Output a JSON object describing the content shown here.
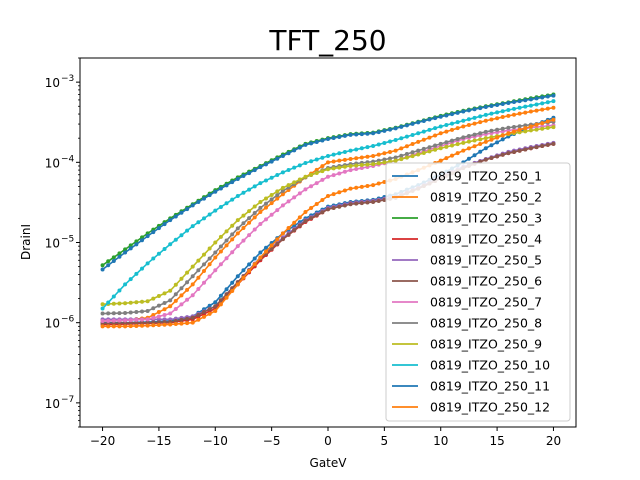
{
  "chart_data": {
    "type": "line",
    "title": "TFT_250",
    "xlabel": "GateV",
    "ylabel": "DrainI",
    "xlim": [
      -22,
      22
    ],
    "ylim": [
      5e-08,
      0.002
    ],
    "yscale": "log",
    "x_ticks": [
      -20,
      -15,
      -10,
      -5,
      0,
      5,
      10,
      15,
      20
    ],
    "x_tick_labels": [
      "−20",
      "−15",
      "−10",
      "−5",
      "0",
      "5",
      "10",
      "15",
      "20"
    ],
    "y_ticks": [
      1e-07,
      1e-06,
      1e-05,
      0.0001,
      0.001
    ],
    "y_tick_labels": [
      "10",
      "10",
      "10",
      "10",
      "10"
    ],
    "y_tick_exponents": [
      "−7",
      "−6",
      "−5",
      "−4",
      "−3"
    ],
    "grid": false,
    "legend_position": "lower-right",
    "marker": "point",
    "x": [
      -20,
      -18,
      -16,
      -14,
      -12,
      -10,
      -8,
      -6,
      -4,
      -2,
      0,
      2,
      4,
      6,
      8,
      10,
      12,
      14,
      16,
      18,
      20
    ],
    "series": [
      {
        "name": "0819_ITZO_250_1",
        "color": "#1f77b4",
        "values": [
          1e-06,
          1e-06,
          1.02e-06,
          1.05e-06,
          1.2e-06,
          1.8e-06,
          3.8e-06,
          7.5e-06,
          1.3e-05,
          2e-05,
          2.8e-05,
          3.2e-05,
          3.4e-05,
          4e-05,
          5.2e-05,
          7e-05,
          0.0001,
          0.00015,
          0.00021,
          0.00028,
          0.00036
        ]
      },
      {
        "name": "0819_ITZO_250_2",
        "color": "#ff7f0e",
        "values": [
          1.05e-06,
          1.07e-06,
          1.15e-06,
          1.6e-06,
          3e-06,
          6.5e-06,
          1.3e-05,
          2.4e-05,
          4e-05,
          6.5e-05,
          0.0001,
          0.00011,
          0.00012,
          0.00014,
          0.00018,
          0.00023,
          0.00028,
          0.00033,
          0.00038,
          0.00043,
          0.00048
        ]
      },
      {
        "name": "0819_ITZO_250_3",
        "color": "#2ca02c",
        "values": [
          5.2e-06,
          8.2e-06,
          1.3e-05,
          2e-05,
          3e-05,
          4.5e-05,
          6.5e-05,
          9e-05,
          0.000125,
          0.00017,
          0.0002,
          0.000225,
          0.000235,
          0.00027,
          0.00032,
          0.00038,
          0.00044,
          0.0005,
          0.00056,
          0.00063,
          0.0007
        ]
      },
      {
        "name": "0819_ITZO_250_4",
        "color": "#d62728",
        "values": [
          9.5e-07,
          9.6e-07,
          9.8e-07,
          1e-06,
          1.1e-06,
          1.5e-06,
          3e-06,
          6e-06,
          1.1e-05,
          1.8e-05,
          2.6e-05,
          3.1e-05,
          3.3e-05,
          3.7e-05,
          4.7e-05,
          6.3e-05,
          8.5e-05,
          0.000108,
          0.00013,
          0.00015,
          0.00017
        ]
      },
      {
        "name": "0819_ITZO_250_5",
        "color": "#9467bd",
        "values": [
          1.1e-06,
          1.1e-06,
          1.1e-06,
          1.1e-06,
          1.2e-06,
          1.6e-06,
          3.2e-06,
          6.5e-06,
          1.15e-05,
          1.9e-05,
          2.7e-05,
          3.1e-05,
          3.3e-05,
          3.7e-05,
          4.8e-05,
          6.5e-05,
          8.8e-05,
          0.00011,
          0.000135,
          0.000155,
          0.000175
        ]
      },
      {
        "name": "0819_ITZO_250_6",
        "color": "#8c564b",
        "values": [
          9.8e-07,
          9.9e-07,
          1e-06,
          1.02e-06,
          1.15e-06,
          1.6e-06,
          3.2e-06,
          6.3e-06,
          1.1e-05,
          1.85e-05,
          2.6e-05,
          3e-05,
          3.2e-05,
          3.6e-05,
          4.7e-05,
          6.3e-05,
          8.5e-05,
          0.000108,
          0.00013,
          0.00015,
          0.00017
        ]
      },
      {
        "name": "0819_ITZO_250_7",
        "color": "#e377c2",
        "values": [
          1.05e-06,
          1.07e-06,
          1.1e-06,
          1.3e-06,
          2.2e-06,
          4.5e-06,
          9e-06,
          1.7e-05,
          2.9e-05,
          4.6e-05,
          6.6e-05,
          8e-05,
          9e-05,
          0.000105,
          0.00013,
          0.00016,
          0.000195,
          0.000225,
          0.00025,
          0.00027,
          0.00029
        ]
      },
      {
        "name": "0819_ITZO_250_8",
        "color": "#7f7f7f",
        "values": [
          1.3e-06,
          1.32e-06,
          1.4e-06,
          1.9e-06,
          3.8e-06,
          7.5e-06,
          1.5e-05,
          2.7e-05,
          4.4e-05,
          6.5e-05,
          8.5e-05,
          9.5e-05,
          0.000102,
          0.000115,
          0.00014,
          0.00017,
          0.000205,
          0.00024,
          0.00027,
          0.000295,
          0.00032
        ]
      },
      {
        "name": "0819_ITZO_250_9",
        "color": "#bcbd22",
        "values": [
          1.7e-06,
          1.75e-06,
          1.85e-06,
          2.5e-06,
          5e-06,
          1e-05,
          1.9e-05,
          3.2e-05,
          4.8e-05,
          6.6e-05,
          8.2e-05,
          9e-05,
          9.5e-05,
          0.000105,
          0.000125,
          0.00015,
          0.000175,
          0.0002,
          0.000225,
          0.00025,
          0.000275
        ]
      },
      {
        "name": "0819_ITZO_250_10",
        "color": "#17becf",
        "values": [
          1.5e-06,
          3e-06,
          5.5e-06,
          9.5e-06,
          1.6e-05,
          2.5e-05,
          3.8e-05,
          5.5e-05,
          7.5e-05,
          9.8e-05,
          0.00012,
          0.00014,
          0.00016,
          0.00019,
          0.00023,
          0.00028,
          0.00033,
          0.00039,
          0.00045,
          0.00051,
          0.00058
        ]
      },
      {
        "name": "0819_ITZO_250_11",
        "color": "#1f77b4",
        "values": [
          4.6e-06,
          7.5e-06,
          1.2e-05,
          1.9e-05,
          2.9e-05,
          4.3e-05,
          6.2e-05,
          8.7e-05,
          0.00012,
          0.000165,
          0.000195,
          0.00022,
          0.00023,
          0.000265,
          0.000315,
          0.00037,
          0.00043,
          0.00049,
          0.00055,
          0.00061,
          0.00068
        ]
      },
      {
        "name": "0819_ITZO_250_12",
        "color": "#ff7f0e",
        "values": [
          9e-07,
          9e-07,
          9.2e-07,
          9.5e-07,
          1e-06,
          1.4e-06,
          3e-06,
          6.5e-06,
          1.3e-05,
          2.4e-05,
          3.8e-05,
          4.7e-05,
          5.2e-05,
          6.2e-05,
          8e-05,
          0.000105,
          0.00014,
          0.00018,
          0.00023,
          0.00028,
          0.00034
        ]
      }
    ]
  }
}
